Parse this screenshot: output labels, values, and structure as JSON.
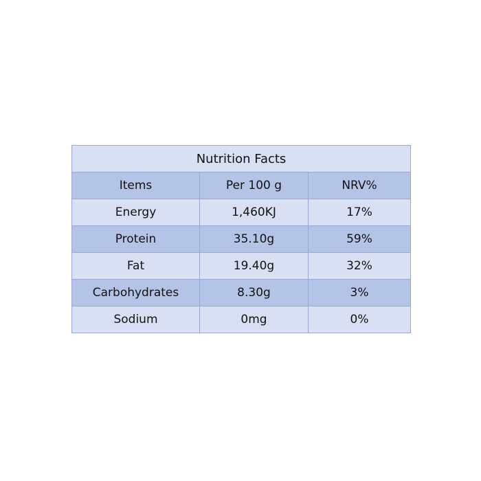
{
  "table": {
    "title": "Nutrition Facts",
    "headers": [
      "Items",
      "Per 100 g",
      "NRV%"
    ],
    "rows": [
      [
        "Energy",
        "1,460KJ",
        "17%"
      ],
      [
        "Protein",
        "35.10g",
        "59%"
      ],
      [
        "Fat",
        "19.40g",
        "32%"
      ],
      [
        "Carbohydrates",
        "8.30g",
        "3%"
      ],
      [
        "Sodium",
        "0mg",
        "0%"
      ]
    ]
  },
  "colors": {
    "light_row": "#d9e0f3",
    "dark_row": "#b4c4e6",
    "border": "#98a8cf"
  }
}
